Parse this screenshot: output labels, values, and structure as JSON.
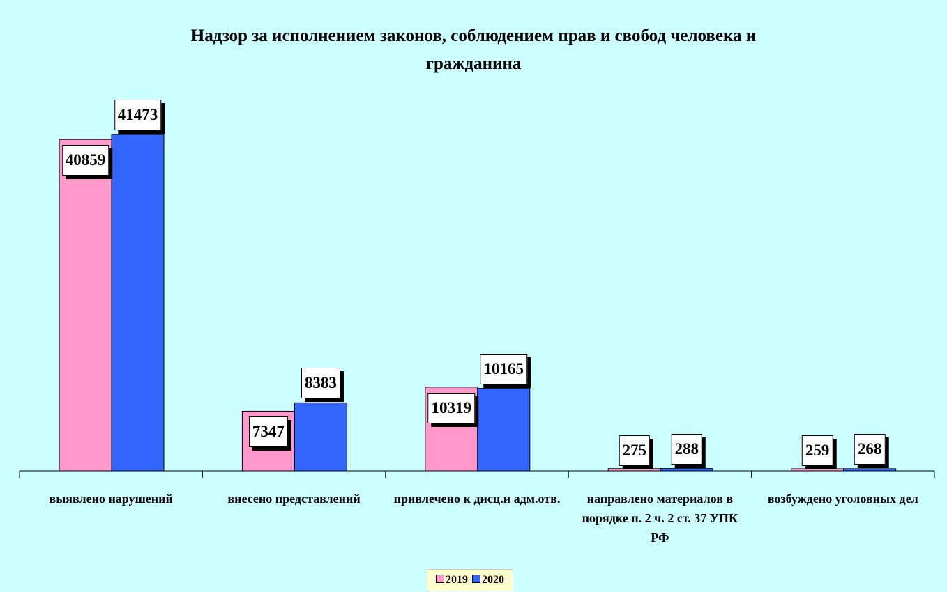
{
  "chart_data": {
    "type": "bar",
    "title": "Надзор за исполнением законов, соблюдением прав и свобод человека и гражданина",
    "categories": [
      "выявлено нарушений",
      "внесено представлений",
      "привлечено к дисц.и адм.отв.",
      "направлено материалов в порядке п. 2 ч. 2 ст. 37 УПК РФ",
      "возбуждено уголовных дел"
    ],
    "series": [
      {
        "name": "2019",
        "color": "#ff99cc",
        "values": [
          40859,
          7347,
          10319,
          275,
          259
        ]
      },
      {
        "name": "2020",
        "color": "#3366ff",
        "values": [
          41473,
          8383,
          10165,
          288,
          268
        ]
      }
    ],
    "legend": "bottom"
  }
}
